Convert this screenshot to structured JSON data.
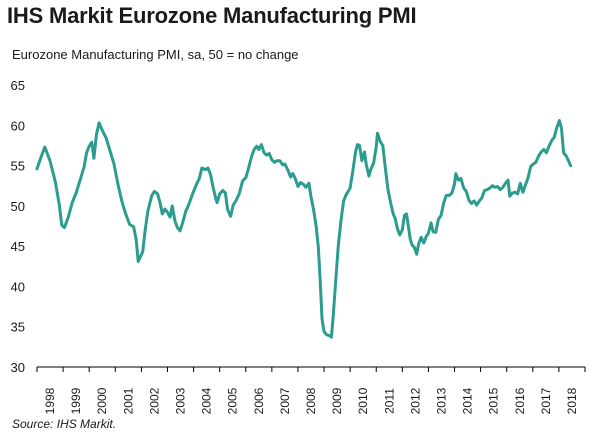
{
  "chart_data": {
    "type": "line",
    "title": "IHS Markit Eurozone Manufacturing PMI",
    "subtitle": "Eurozone Manufacturing PMI, sa, 50 = no change",
    "source": "Source: IHS Markit.",
    "xlabel": "",
    "ylabel": "",
    "ylim": [
      30,
      65
    ],
    "xlim": [
      1998.0,
      2019.0
    ],
    "yticks": [
      "30",
      "35",
      "40",
      "45",
      "50",
      "55",
      "60",
      "65"
    ],
    "xticks": [
      "1998",
      "1999",
      "2000",
      "2001",
      "2002",
      "2003",
      "2004",
      "2005",
      "2006",
      "2007",
      "2008",
      "2009",
      "2010",
      "2011",
      "2012",
      "2013",
      "2014",
      "2015",
      "2016",
      "2017",
      "2018"
    ],
    "grid": false,
    "line_color": "#2a9d8f",
    "series": [
      {
        "name": "Eurozone Manufacturing PMI",
        "points": [
          [
            1998.0,
            54.6
          ],
          [
            1998.15,
            56.0
          ],
          [
            1998.3,
            57.3
          ],
          [
            1998.5,
            55.6
          ],
          [
            1998.7,
            53.0
          ],
          [
            1998.85,
            50.2
          ],
          [
            1998.95,
            47.6
          ],
          [
            1999.05,
            47.3
          ],
          [
            1999.2,
            48.6
          ],
          [
            1999.35,
            50.4
          ],
          [
            1999.5,
            51.6
          ],
          [
            1999.65,
            53.2
          ],
          [
            1999.8,
            54.8
          ],
          [
            1999.9,
            56.6
          ],
          [
            2000.0,
            57.4
          ],
          [
            2000.1,
            57.9
          ],
          [
            2000.18,
            55.9
          ],
          [
            2000.28,
            58.9
          ],
          [
            2000.38,
            60.3
          ],
          [
            2000.5,
            59.4
          ],
          [
            2000.65,
            58.4
          ],
          [
            2000.8,
            56.8
          ],
          [
            2000.95,
            55.2
          ],
          [
            2001.1,
            52.7
          ],
          [
            2001.25,
            50.6
          ],
          [
            2001.4,
            49.0
          ],
          [
            2001.55,
            47.7
          ],
          [
            2001.7,
            47.4
          ],
          [
            2001.8,
            45.8
          ],
          [
            2001.88,
            43.1
          ],
          [
            2001.95,
            43.6
          ],
          [
            2002.05,
            44.3
          ],
          [
            2002.15,
            47.1
          ],
          [
            2002.25,
            49.4
          ],
          [
            2002.4,
            51.3
          ],
          [
            2002.5,
            51.8
          ],
          [
            2002.62,
            51.5
          ],
          [
            2002.72,
            50.3
          ],
          [
            2002.8,
            49.0
          ],
          [
            2002.9,
            49.6
          ],
          [
            2003.0,
            49.2
          ],
          [
            2003.1,
            48.6
          ],
          [
            2003.18,
            50.0
          ],
          [
            2003.28,
            48.2
          ],
          [
            2003.38,
            47.3
          ],
          [
            2003.48,
            46.9
          ],
          [
            2003.58,
            47.9
          ],
          [
            2003.7,
            49.3
          ],
          [
            2003.82,
            50.2
          ],
          [
            2003.95,
            51.4
          ],
          [
            2004.1,
            52.6
          ],
          [
            2004.22,
            53.4
          ],
          [
            2004.32,
            54.7
          ],
          [
            2004.45,
            54.5
          ],
          [
            2004.55,
            54.7
          ],
          [
            2004.65,
            53.9
          ],
          [
            2004.75,
            52.3
          ],
          [
            2004.85,
            50.9
          ],
          [
            2004.9,
            50.4
          ],
          [
            2005.0,
            51.5
          ],
          [
            2005.12,
            51.9
          ],
          [
            2005.22,
            51.6
          ],
          [
            2005.3,
            49.6
          ],
          [
            2005.42,
            48.7
          ],
          [
            2005.52,
            50.1
          ],
          [
            2005.62,
            50.6
          ],
          [
            2005.75,
            51.5
          ],
          [
            2005.88,
            53.1
          ],
          [
            2006.0,
            53.5
          ],
          [
            2006.1,
            54.6
          ],
          [
            2006.22,
            56.1
          ],
          [
            2006.32,
            57.0
          ],
          [
            2006.42,
            57.4
          ],
          [
            2006.5,
            57.0
          ],
          [
            2006.6,
            57.6
          ],
          [
            2006.7,
            56.6
          ],
          [
            2006.8,
            56.3
          ],
          [
            2006.9,
            56.5
          ],
          [
            2007.0,
            55.7
          ],
          [
            2007.1,
            55.4
          ],
          [
            2007.2,
            55.6
          ],
          [
            2007.3,
            55.6
          ],
          [
            2007.42,
            55.1
          ],
          [
            2007.5,
            55.2
          ],
          [
            2007.62,
            54.4
          ],
          [
            2007.72,
            53.6
          ],
          [
            2007.8,
            54.0
          ],
          [
            2007.9,
            53.4
          ],
          [
            2008.0,
            52.4
          ],
          [
            2008.1,
            52.9
          ],
          [
            2008.2,
            52.7
          ],
          [
            2008.3,
            52.3
          ],
          [
            2008.42,
            52.8
          ],
          [
            2008.5,
            51.1
          ],
          [
            2008.6,
            49.5
          ],
          [
            2008.7,
            47.4
          ],
          [
            2008.78,
            44.9
          ],
          [
            2008.85,
            41.0
          ],
          [
            2008.92,
            36.0
          ],
          [
            2009.0,
            34.4
          ],
          [
            2009.1,
            34.0
          ],
          [
            2009.2,
            33.9
          ],
          [
            2009.28,
            33.7
          ],
          [
            2009.36,
            36.6
          ],
          [
            2009.45,
            40.9
          ],
          [
            2009.55,
            45.2
          ],
          [
            2009.65,
            48.2
          ],
          [
            2009.75,
            50.6
          ],
          [
            2009.85,
            51.4
          ],
          [
            2010.0,
            52.2
          ],
          [
            2010.1,
            54.3
          ],
          [
            2010.2,
            56.6
          ],
          [
            2010.28,
            57.6
          ],
          [
            2010.36,
            57.5
          ],
          [
            2010.45,
            55.6
          ],
          [
            2010.55,
            56.7
          ],
          [
            2010.62,
            55.1
          ],
          [
            2010.72,
            53.7
          ],
          [
            2010.8,
            54.6
          ],
          [
            2010.9,
            55.3
          ],
          [
            2011.0,
            57.3
          ],
          [
            2011.05,
            59.0
          ],
          [
            2011.15,
            58.0
          ],
          [
            2011.25,
            57.5
          ],
          [
            2011.35,
            54.6
          ],
          [
            2011.45,
            52.0
          ],
          [
            2011.55,
            50.4
          ],
          [
            2011.65,
            49.0
          ],
          [
            2011.72,
            48.5
          ],
          [
            2011.82,
            47.1
          ],
          [
            2011.9,
            46.4
          ],
          [
            2012.0,
            47.0
          ],
          [
            2012.08,
            48.8
          ],
          [
            2012.16,
            49.0
          ],
          [
            2012.22,
            47.7
          ],
          [
            2012.3,
            45.9
          ],
          [
            2012.38,
            45.1
          ],
          [
            2012.45,
            44.9
          ],
          [
            2012.55,
            44.0
          ],
          [
            2012.62,
            45.2
          ],
          [
            2012.72,
            46.1
          ],
          [
            2012.82,
            45.4
          ],
          [
            2012.92,
            46.2
          ],
          [
            2013.0,
            46.6
          ],
          [
            2013.1,
            47.9
          ],
          [
            2013.18,
            46.8
          ],
          [
            2013.28,
            46.7
          ],
          [
            2013.38,
            48.3
          ],
          [
            2013.48,
            48.8
          ],
          [
            2013.58,
            50.3
          ],
          [
            2013.68,
            51.3
          ],
          [
            2013.8,
            51.3
          ],
          [
            2013.9,
            51.6
          ],
          [
            2014.0,
            52.7
          ],
          [
            2014.05,
            54.0
          ],
          [
            2014.15,
            53.2
          ],
          [
            2014.25,
            53.4
          ],
          [
            2014.35,
            52.2
          ],
          [
            2014.45,
            51.8
          ],
          [
            2014.55,
            50.7
          ],
          [
            2014.65,
            50.3
          ],
          [
            2014.75,
            50.6
          ],
          [
            2014.85,
            50.1
          ],
          [
            2014.95,
            50.6
          ],
          [
            2015.05,
            51.0
          ],
          [
            2015.15,
            51.9
          ],
          [
            2015.25,
            52.0
          ],
          [
            2015.35,
            52.2
          ],
          [
            2015.45,
            52.5
          ],
          [
            2015.55,
            52.3
          ],
          [
            2015.65,
            52.4
          ],
          [
            2015.75,
            52.0
          ],
          [
            2015.85,
            52.3
          ],
          [
            2015.95,
            52.8
          ],
          [
            2016.05,
            53.2
          ],
          [
            2016.12,
            51.2
          ],
          [
            2016.22,
            51.6
          ],
          [
            2016.32,
            51.7
          ],
          [
            2016.42,
            51.5
          ],
          [
            2016.52,
            52.8
          ],
          [
            2016.62,
            51.7
          ],
          [
            2016.72,
            52.6
          ],
          [
            2016.82,
            53.5
          ],
          [
            2016.92,
            54.9
          ],
          [
            2017.02,
            55.2
          ],
          [
            2017.12,
            55.4
          ],
          [
            2017.22,
            56.2
          ],
          [
            2017.32,
            56.7
          ],
          [
            2017.42,
            57.0
          ],
          [
            2017.52,
            56.6
          ],
          [
            2017.62,
            57.4
          ],
          [
            2017.72,
            58.1
          ],
          [
            2017.82,
            58.5
          ],
          [
            2017.92,
            59.7
          ],
          [
            2018.02,
            60.6
          ],
          [
            2018.1,
            59.6
          ],
          [
            2018.18,
            56.6
          ],
          [
            2018.28,
            56.2
          ],
          [
            2018.38,
            55.5
          ],
          [
            2018.45,
            55.0
          ]
        ]
      }
    ]
  }
}
